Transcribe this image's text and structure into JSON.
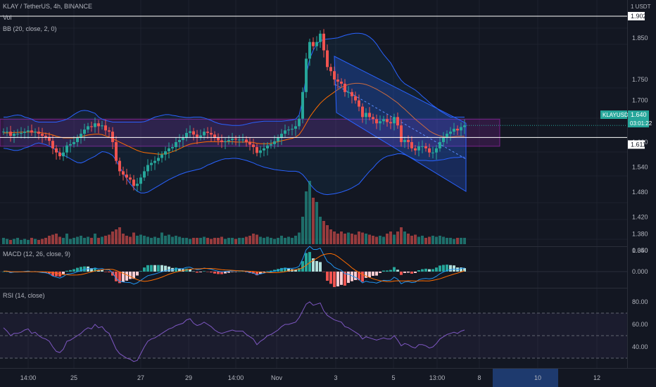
{
  "header": {
    "symbol_line": "KLAY / TetherUS, 4h, BINANCE",
    "vol_label": "Vol",
    "bb_label": "BB (20, close, 2, 0)",
    "macd_label": "MACD (12, 26, close, 9)",
    "rsi_label": "RSI (14, close)",
    "currency": "1 USDT"
  },
  "price_axis": {
    "ticks": [
      "1.850",
      "1.750",
      "1.700",
      "1.600",
      "1.540",
      "1.480",
      "1.420",
      "1.380",
      "1.340"
    ],
    "hline_high_label": "1.902",
    "hline_low_label": "1.611",
    "current_symbol": "KLAYUSDT",
    "current_price": "1.640",
    "countdown": "03:01:22"
  },
  "macd_axis": {
    "ticks": [
      "0.050",
      "0.000"
    ]
  },
  "rsi_axis": {
    "ticks": [
      "80.00",
      "60.00",
      "40.00"
    ]
  },
  "time_axis": {
    "labels": [
      "14:00",
      "25",
      "27",
      "29",
      "14:00",
      "Nov",
      "3",
      "5",
      "13:00",
      "8",
      "10",
      "12"
    ]
  },
  "colors": {
    "background": "#131722",
    "up": "#26a69a",
    "down": "#ef5350",
    "bb_band": "#2962ff",
    "bb_basis": "#ff6d00",
    "zone": "#9c27b0",
    "channel": "#2962ff",
    "rsi_line": "#7e57c2",
    "macd_line": "#2196f3",
    "signal_line": "#ff6d00"
  },
  "chart_data": {
    "type": "candlestick",
    "title": "KLAY / TetherUS, 4h, BINANCE",
    "y_range": [
      1.34,
      1.88
    ],
    "horizontal_levels": [
      1.902,
      1.611
    ],
    "support_resistance_zone": [
      1.59,
      1.655
    ],
    "close": [
      1.625,
      1.625,
      1.615,
      1.62,
      1.62,
      1.622,
      1.625,
      1.628,
      1.623,
      1.625,
      1.62,
      1.615,
      1.612,
      1.603,
      1.585,
      1.575,
      1.566,
      1.575,
      1.592,
      1.595,
      1.6,
      1.61,
      1.62,
      1.63,
      1.638,
      1.636,
      1.645,
      1.638,
      1.64,
      1.628,
      1.625,
      1.6,
      1.555,
      1.53,
      1.522,
      1.515,
      1.51,
      1.495,
      1.5,
      1.515,
      1.53,
      1.545,
      1.55,
      1.555,
      1.562,
      1.57,
      1.578,
      1.585,
      1.588,
      1.6,
      1.605,
      1.61,
      1.622,
      1.626,
      1.618,
      1.612,
      1.616,
      1.625,
      1.622,
      1.618,
      1.61,
      1.604,
      1.6,
      1.602,
      1.605,
      1.608,
      1.606,
      1.606,
      1.606,
      1.6,
      1.594,
      1.588,
      1.574,
      1.58,
      1.585,
      1.592,
      1.595,
      1.602,
      1.61,
      1.62,
      1.628,
      1.63,
      1.632,
      1.638,
      1.656,
      1.72,
      1.8,
      1.84,
      1.83,
      1.84,
      1.86,
      1.82,
      1.78,
      1.77,
      1.75,
      1.745,
      1.74,
      1.72,
      1.72,
      1.71,
      1.7,
      1.685,
      1.66,
      1.67,
      1.66,
      1.655,
      1.645,
      1.65,
      1.655,
      1.648,
      1.645,
      1.66,
      1.64,
      1.6,
      1.605,
      1.6,
      1.585,
      1.58,
      1.59,
      1.59,
      1.585,
      1.575,
      1.575,
      1.585,
      1.6,
      1.61,
      1.62,
      1.625,
      1.632,
      1.628,
      1.636,
      1.64
    ],
    "bb_upper": [
      1.66,
      1.66,
      1.662,
      1.664,
      1.665,
      1.664,
      1.66,
      1.658,
      1.655,
      1.65,
      1.648,
      1.648,
      1.648,
      1.648,
      1.648,
      1.648,
      1.65,
      1.652,
      1.655,
      1.66,
      1.666,
      1.671,
      1.675,
      1.676,
      1.675,
      1.672,
      1.669,
      1.66,
      1.655,
      1.652,
      1.65,
      1.648,
      1.648,
      1.648,
      1.648,
      1.648,
      1.648,
      1.648,
      1.648,
      1.648,
      1.649,
      1.652,
      1.656,
      1.66,
      1.662,
      1.664,
      1.666,
      1.666,
      1.664,
      1.663,
      1.661,
      1.66,
      1.659,
      1.659,
      1.66,
      1.66,
      1.66,
      1.658,
      1.655,
      1.652,
      1.648,
      1.645,
      1.643,
      1.642,
      1.641,
      1.64,
      1.64,
      1.64,
      1.641,
      1.643,
      1.645,
      1.647,
      1.648,
      1.649,
      1.65,
      1.65,
      1.65,
      1.65,
      1.65,
      1.65,
      1.651,
      1.652,
      1.653,
      1.655,
      1.665,
      1.7,
      1.76,
      1.8,
      1.82,
      1.835,
      1.843,
      1.846,
      1.847,
      1.848,
      1.849,
      1.85,
      1.853,
      1.856,
      1.858,
      1.86,
      1.861,
      1.861,
      1.86,
      1.857,
      1.852,
      1.845,
      1.835,
      1.822,
      1.81,
      1.8,
      1.79,
      1.775,
      1.76,
      1.748,
      1.74,
      1.735,
      1.73,
      1.725,
      1.718,
      1.71,
      1.703,
      1.695,
      1.688,
      1.682,
      1.675,
      1.67,
      1.665,
      1.66,
      1.66,
      1.66,
      1.66,
      1.66
    ],
    "bb_basis": [
      1.622,
      1.622,
      1.622,
      1.623,
      1.623,
      1.624,
      1.624,
      1.624,
      1.624,
      1.624,
      1.623,
      1.622,
      1.621,
      1.619,
      1.617,
      1.614,
      1.612,
      1.61,
      1.61,
      1.61,
      1.61,
      1.611,
      1.613,
      1.615,
      1.617,
      1.618,
      1.619,
      1.619,
      1.618,
      1.615,
      1.612,
      1.608,
      1.604,
      1.6,
      1.596,
      1.592,
      1.588,
      1.584,
      1.58,
      1.577,
      1.575,
      1.574,
      1.573,
      1.572,
      1.571,
      1.571,
      1.572,
      1.574,
      1.577,
      1.58,
      1.584,
      1.588,
      1.592,
      1.595,
      1.597,
      1.598,
      1.599,
      1.6,
      1.601,
      1.601,
      1.601,
      1.601,
      1.601,
      1.601,
      1.601,
      1.601,
      1.6,
      1.6,
      1.6,
      1.6,
      1.6,
      1.599,
      1.597,
      1.596,
      1.596,
      1.596,
      1.597,
      1.599,
      1.601,
      1.603,
      1.605,
      1.607,
      1.609,
      1.612,
      1.618,
      1.63,
      1.645,
      1.66,
      1.672,
      1.683,
      1.693,
      1.701,
      1.708,
      1.714,
      1.72,
      1.726,
      1.731,
      1.735,
      1.738,
      1.74,
      1.741,
      1.741,
      1.74,
      1.738,
      1.735,
      1.731,
      1.727,
      1.722,
      1.717,
      1.712,
      1.706,
      1.7,
      1.694,
      1.686,
      1.679,
      1.671,
      1.663,
      1.655,
      1.648,
      1.641,
      1.634,
      1.627,
      1.622,
      1.618,
      1.615,
      1.613,
      1.612,
      1.612,
      1.613,
      1.614,
      1.614,
      1.614
    ],
    "bb_lower": [
      1.585,
      1.584,
      1.582,
      1.58,
      1.58,
      1.582,
      1.586,
      1.588,
      1.592,
      1.596,
      1.598,
      1.596,
      1.594,
      1.59,
      1.586,
      1.58,
      1.574,
      1.568,
      1.565,
      1.56,
      1.555,
      1.551,
      1.55,
      1.553,
      1.558,
      1.562,
      1.566,
      1.572,
      1.577,
      1.576,
      1.573,
      1.568,
      1.556,
      1.54,
      1.526,
      1.512,
      1.5,
      1.49,
      1.482,
      1.478,
      1.478,
      1.48,
      1.485,
      1.49,
      1.495,
      1.5,
      1.505,
      1.51,
      1.514,
      1.518,
      1.522,
      1.525,
      1.528,
      1.53,
      1.532,
      1.534,
      1.536,
      1.54,
      1.545,
      1.548,
      1.552,
      1.555,
      1.558,
      1.56,
      1.56,
      1.561,
      1.561,
      1.56,
      1.558,
      1.556,
      1.553,
      1.55,
      1.546,
      1.543,
      1.54,
      1.538,
      1.536,
      1.534,
      1.533,
      1.532,
      1.531,
      1.53,
      1.53,
      1.53,
      1.528,
      1.522,
      1.512,
      1.5,
      1.49,
      1.482,
      1.478,
      1.475,
      1.474,
      1.475,
      1.476,
      1.478,
      1.48,
      1.483,
      1.486,
      1.49,
      1.495,
      1.5,
      1.51,
      1.52,
      1.53,
      1.538,
      1.548,
      1.556,
      1.562,
      1.566,
      1.568,
      1.57,
      1.572,
      1.572,
      1.57,
      1.566,
      1.562,
      1.558,
      1.556,
      1.556,
      1.556,
      1.555,
      1.555,
      1.556,
      1.557,
      1.558,
      1.56,
      1.562,
      1.563,
      1.563,
      1.564,
      1.564
    ],
    "volume_relative": [
      0.3,
      0.25,
      0.2,
      0.25,
      0.3,
      0.2,
      0.25,
      0.2,
      0.3,
      0.25,
      0.2,
      0.25,
      0.3,
      0.4,
      0.45,
      0.5,
      0.35,
      0.3,
      0.5,
      0.25,
      0.3,
      0.35,
      0.4,
      0.3,
      0.35,
      0.3,
      0.5,
      0.3,
      0.35,
      0.4,
      0.45,
      0.6,
      0.7,
      0.8,
      0.5,
      0.4,
      0.35,
      0.55,
      0.4,
      0.45,
      0.4,
      0.35,
      0.3,
      0.35,
      0.3,
      0.55,
      0.4,
      0.45,
      0.35,
      0.4,
      0.35,
      0.3,
      0.3,
      0.25,
      0.3,
      0.3,
      0.3,
      0.35,
      0.3,
      0.25,
      0.3,
      0.3,
      0.35,
      0.25,
      0.3,
      0.3,
      0.25,
      0.3,
      0.3,
      0.35,
      0.4,
      0.5,
      0.45,
      0.35,
      0.3,
      0.35,
      0.3,
      0.25,
      0.3,
      0.4,
      0.3,
      0.35,
      0.3,
      0.4,
      0.55,
      1.3,
      2.5,
      3.0,
      2.2,
      2.0,
      1.3,
      1.1,
      0.9,
      0.7,
      0.6,
      0.5,
      0.6,
      0.5,
      0.55,
      0.5,
      0.45,
      0.6,
      0.55,
      0.5,
      0.45,
      0.4,
      0.35,
      0.4,
      0.35,
      0.5,
      0.6,
      0.45,
      0.6,
      0.8,
      0.6,
      0.5,
      0.4,
      0.45,
      0.35,
      0.4,
      0.3,
      0.35,
      0.4,
      0.35,
      0.4,
      0.35,
      0.3,
      0.3,
      0.25,
      0.3,
      0.3,
      0.3,
      0.3,
      0.25
    ],
    "rsi": [
      57,
      54,
      50,
      52,
      52,
      53,
      55,
      56,
      52,
      53,
      50,
      48,
      47,
      45,
      40,
      36,
      35,
      38,
      45,
      46,
      48,
      50,
      52,
      55,
      57,
      56,
      60,
      57,
      58,
      54,
      52,
      45,
      38,
      34,
      32,
      30,
      29,
      27,
      28,
      34,
      40,
      45,
      47,
      48,
      50,
      52,
      54,
      56,
      57,
      59,
      60,
      61,
      64,
      65,
      61,
      59,
      60,
      62,
      60,
      58,
      55,
      53,
      52,
      53,
      54,
      55,
      54,
      54,
      54,
      51,
      49,
      47,
      42,
      45,
      47,
      50,
      51,
      53,
      55,
      58,
      60,
      60,
      61,
      62,
      66,
      72,
      78,
      80,
      77,
      78,
      79,
      72,
      68,
      66,
      64,
      63,
      62,
      58,
      57,
      55,
      53,
      51,
      47,
      49,
      48,
      47,
      46,
      47,
      48,
      47,
      47,
      50,
      46,
      41,
      43,
      42,
      40,
      39,
      42,
      42,
      41,
      39,
      40,
      43,
      47,
      49,
      51,
      52,
      53,
      52,
      54,
      55
    ]
  }
}
